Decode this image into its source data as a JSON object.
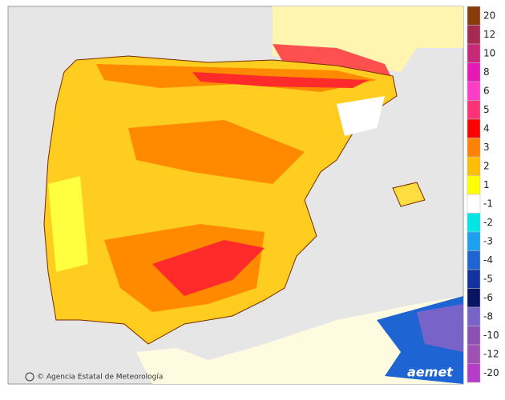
{
  "footer": {
    "credit": "© Agencia Estatal de Meteorología",
    "logo": "aemet"
  },
  "legend": {
    "entries": [
      {
        "label": "20",
        "color": "#8b3c0c"
      },
      {
        "label": "12",
        "color": "#a52a52"
      },
      {
        "label": "10",
        "color": "#c8287a"
      },
      {
        "label": "8",
        "color": "#e619b4"
      },
      {
        "label": "6",
        "color": "#ff3cc8"
      },
      {
        "label": "5",
        "color": "#ff3278"
      },
      {
        "label": "4",
        "color": "#ff0000"
      },
      {
        "label": "3",
        "color": "#ff8200"
      },
      {
        "label": "2",
        "color": "#ffbe00"
      },
      {
        "label": "1",
        "color": "#ffff00"
      },
      {
        "label": "-1",
        "color": "#ffffff"
      },
      {
        "label": "-2",
        "color": "#00e6e6"
      },
      {
        "label": "-3",
        "color": "#1ea0f0"
      },
      {
        "label": "-4",
        "color": "#1e64d2"
      },
      {
        "label": "-5",
        "color": "#1432a0"
      },
      {
        "label": "-6",
        "color": "#0a1464"
      },
      {
        "label": "-8",
        "color": "#7864c8"
      },
      {
        "label": "-10",
        "color": "#8c50b4"
      },
      {
        "label": "-12",
        "color": "#a050b4"
      },
      {
        "label": "-20",
        "color": "#b43cc8"
      }
    ]
  }
}
